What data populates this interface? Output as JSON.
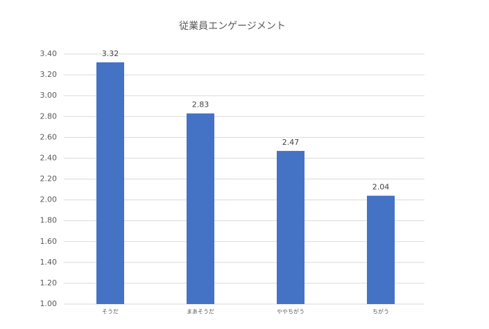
{
  "chart_data": {
    "type": "bar",
    "title": "従業員エンゲージメント",
    "categories": [
      "そうだ",
      "まあそうだ",
      "ややちがう",
      "ちがう"
    ],
    "values": [
      3.32,
      2.83,
      2.47,
      2.04
    ],
    "color": "#4472c4",
    "ylim": [
      1.0,
      3.4
    ],
    "yticks": [
      {
        "value": 1.0,
        "label": "1.00"
      },
      {
        "value": 1.2,
        "label": "1.20"
      },
      {
        "value": 1.4,
        "label": "1.40"
      },
      {
        "value": 1.6,
        "label": "1.60"
      },
      {
        "value": 1.8,
        "label": "1.80"
      },
      {
        "value": 2.0,
        "label": "2.00"
      },
      {
        "value": 2.2,
        "label": "2.20"
      },
      {
        "value": 2.4,
        "label": "2.40"
      },
      {
        "value": 2.6,
        "label": "2.60"
      },
      {
        "value": 2.8,
        "label": "2.80"
      },
      {
        "value": 3.0,
        "label": "3.00"
      },
      {
        "value": 3.2,
        "label": "3.20"
      },
      {
        "value": 3.4,
        "label": "3.40"
      }
    ],
    "grid": true
  }
}
